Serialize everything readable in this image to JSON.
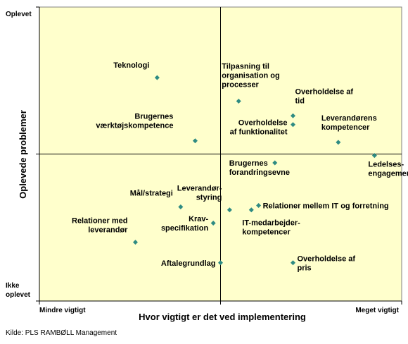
{
  "chart_data": {
    "type": "scatter",
    "title": "",
    "xlabel": "Hvor vigtigt er det ved implementering",
    "ylabel": "Oplevede problemer",
    "x_ticks": {
      "low": "Mindre vigtigt",
      "high": "Meget vigtigt"
    },
    "y_ticks": {
      "high": "Oplevet",
      "low": [
        "Ikke",
        "oplevet"
      ]
    },
    "xlim": [
      0,
      10
    ],
    "ylim": [
      0,
      10
    ],
    "quadrant_lines": {
      "x": 5,
      "y": 5
    },
    "marker_color": "#2e8b82",
    "background_color": "#ffffcc",
    "points": [
      {
        "label": [
          "Teknologi"
        ],
        "x": 3.25,
        "y": 7.6,
        "label_pos": "above-left"
      },
      {
        "label": [
          "Tilpasning til",
          "organisation og",
          "processer"
        ],
        "x": 5.5,
        "y": 6.8,
        "label_pos": "above"
      },
      {
        "label": [
          "Overholdelse af",
          "tid"
        ],
        "x": 7.0,
        "y": 6.3,
        "label_pos": "above-right"
      },
      {
        "label": [
          "Overholdelse",
          "af funktionalitet"
        ],
        "x": 7.0,
        "y": 6.0,
        "label_pos": "left"
      },
      {
        "label": [
          "Leverandørens",
          "kompetencer"
        ],
        "x": 8.25,
        "y": 5.4,
        "label_pos": "above"
      },
      {
        "label": [
          "Brugernes",
          "værktøjskompetence"
        ],
        "x": 4.3,
        "y": 5.45,
        "label_pos": "above-left"
      },
      {
        "label": [
          "Brugernes",
          "forandringsevne"
        ],
        "x": 6.5,
        "y": 4.7,
        "label_pos": "below-left"
      },
      {
        "label": [
          "Ledelses-",
          "engagement"
        ],
        "x": 9.25,
        "y": 4.95,
        "label_pos": "below"
      },
      {
        "label": [
          "Mål/strategi"
        ],
        "x": 3.9,
        "y": 3.2,
        "label_pos": "above-left"
      },
      {
        "label": [
          "Leverandør-",
          "styring"
        ],
        "x": 5.25,
        "y": 3.1,
        "label_pos": "above-left"
      },
      {
        "label": [
          "Relationer mellem IT og forretning"
        ],
        "x": 6.05,
        "y": 3.25,
        "label_pos": "right"
      },
      {
        "label": [
          "IT-medarbejder-",
          "kompetencer"
        ],
        "x": 5.85,
        "y": 3.1,
        "label_pos": "below-left"
      },
      {
        "label": [
          "Krav-",
          "specifikation"
        ],
        "x": 4.8,
        "y": 2.65,
        "label_pos": "left"
      },
      {
        "label": [
          "Relationer med",
          "leverandør"
        ],
        "x": 2.65,
        "y": 2.0,
        "label_pos": "above-left"
      },
      {
        "label": [
          "Aftalegrundlag"
        ],
        "x": 5.0,
        "y": 1.3,
        "label_pos": "left"
      },
      {
        "label": [
          "Overholdelse af",
          "pris"
        ],
        "x": 7.0,
        "y": 1.3,
        "label_pos": "right"
      }
    ]
  },
  "source_text": "Kilde: PLS RAMBØLL Management"
}
